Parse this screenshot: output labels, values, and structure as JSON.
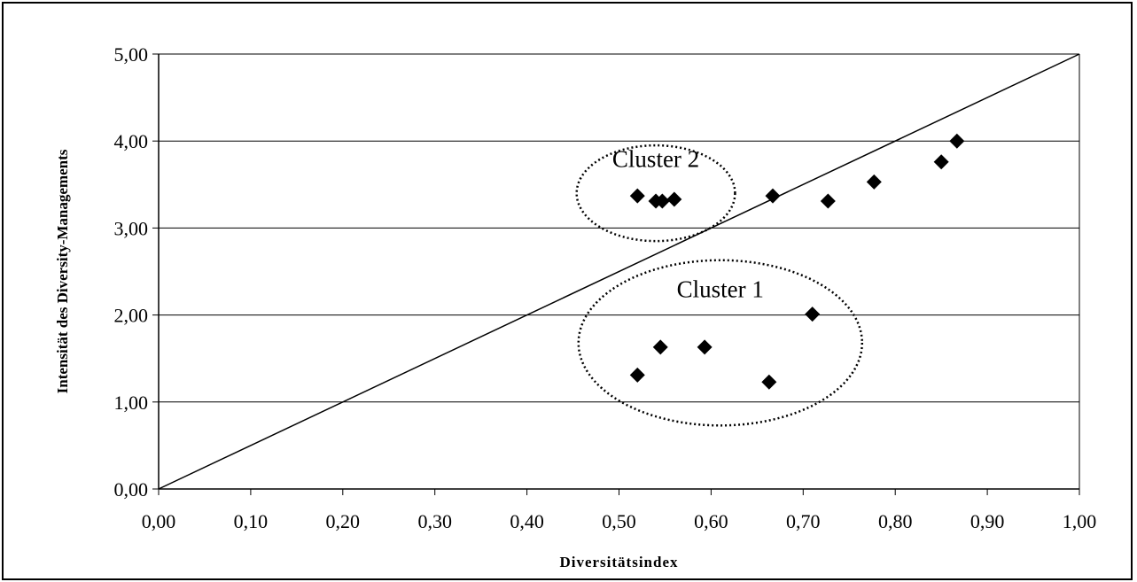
{
  "chart_data": {
    "type": "scatter",
    "xlabel": "Diversitätsindex",
    "ylabel": "Intensität  des Diversity-Managements",
    "xlim": [
      0,
      1
    ],
    "ylim": [
      0,
      5
    ],
    "x_ticks": [
      "0,00",
      "0,10",
      "0,20",
      "0,30",
      "0,40",
      "0,50",
      "0,60",
      "0,70",
      "0,80",
      "0,90",
      "1,00"
    ],
    "y_ticks": [
      "0,00",
      "1,00",
      "2,00",
      "3,00",
      "4,00",
      "5,00"
    ],
    "grid": "horizontal",
    "marker": "diamond",
    "marker_color": "#000000",
    "points": [
      {
        "x": 0.52,
        "y": 3.37
      },
      {
        "x": 0.54,
        "y": 3.31
      },
      {
        "x": 0.547,
        "y": 3.31
      },
      {
        "x": 0.56,
        "y": 3.33
      },
      {
        "x": 0.667,
        "y": 3.37
      },
      {
        "x": 0.727,
        "y": 3.31
      },
      {
        "x": 0.777,
        "y": 3.53
      },
      {
        "x": 0.85,
        "y": 3.76
      },
      {
        "x": 0.867,
        "y": 4.0
      },
      {
        "x": 0.52,
        "y": 1.31
      },
      {
        "x": 0.545,
        "y": 1.63
      },
      {
        "x": 0.593,
        "y": 1.63
      },
      {
        "x": 0.663,
        "y": 1.23
      },
      {
        "x": 0.71,
        "y": 2.01
      }
    ],
    "reference_line": {
      "from": [
        0,
        0
      ],
      "to": [
        1,
        5
      ]
    },
    "annotations": [
      {
        "label": "Cluster 2",
        "ellipse": {
          "cx": 0.54,
          "cy": 3.4,
          "rx": 0.086,
          "ry": 0.55
        }
      },
      {
        "label": "Cluster 1",
        "ellipse": {
          "cx": 0.61,
          "cy": 1.68,
          "rx": 0.154,
          "ry": 0.95
        }
      }
    ]
  }
}
